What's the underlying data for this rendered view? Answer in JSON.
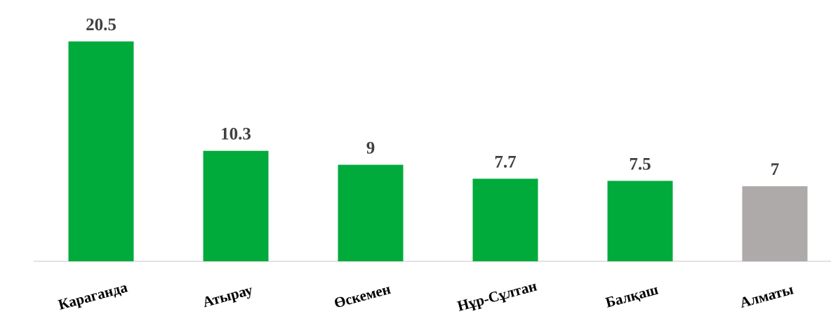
{
  "chart_data": {
    "type": "bar",
    "categories": [
      "Караганда",
      "Атырау",
      "Өскемен",
      "Нұр-Сұлтан",
      "Балқаш",
      "Алматы"
    ],
    "values": [
      20.5,
      10.3,
      9,
      7.7,
      7.5,
      7
    ],
    "colors": [
      "#00ab3c",
      "#00ab3c",
      "#00ab3c",
      "#00ab3c",
      "#00ab3c",
      "#aeaaaa"
    ]
  }
}
